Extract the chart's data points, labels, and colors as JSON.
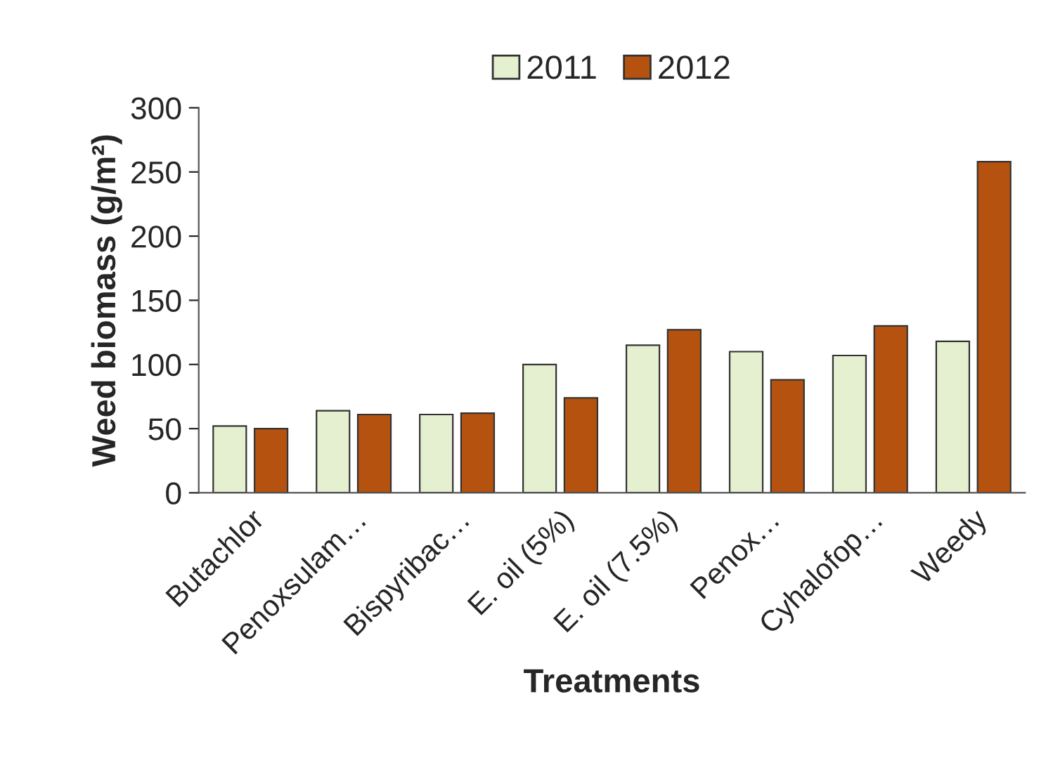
{
  "chart_data": {
    "type": "bar",
    "xlabel": "Treatments",
    "ylabel": "Weed biomass (g/m²)",
    "categories": [
      "Butachlor",
      "Penoxsulam…",
      "Bispyribac…",
      "E. oil (5%)",
      "E. oil (7.5%)",
      "Penox…",
      "Cyhalofop…",
      "Weedy"
    ],
    "series": [
      {
        "name": "2011",
        "color": "#e4f0cf",
        "values": [
          52,
          64,
          61,
          100,
          115,
          110,
          107,
          118
        ]
      },
      {
        "name": "2012",
        "color": "#b5520f",
        "values": [
          50,
          61,
          62,
          74,
          127,
          88,
          130,
          258
        ]
      }
    ],
    "ylim": [
      0,
      300
    ],
    "yticks": [
      0,
      50,
      100,
      150,
      200,
      250,
      300
    ],
    "grid": false,
    "legend": "top"
  }
}
